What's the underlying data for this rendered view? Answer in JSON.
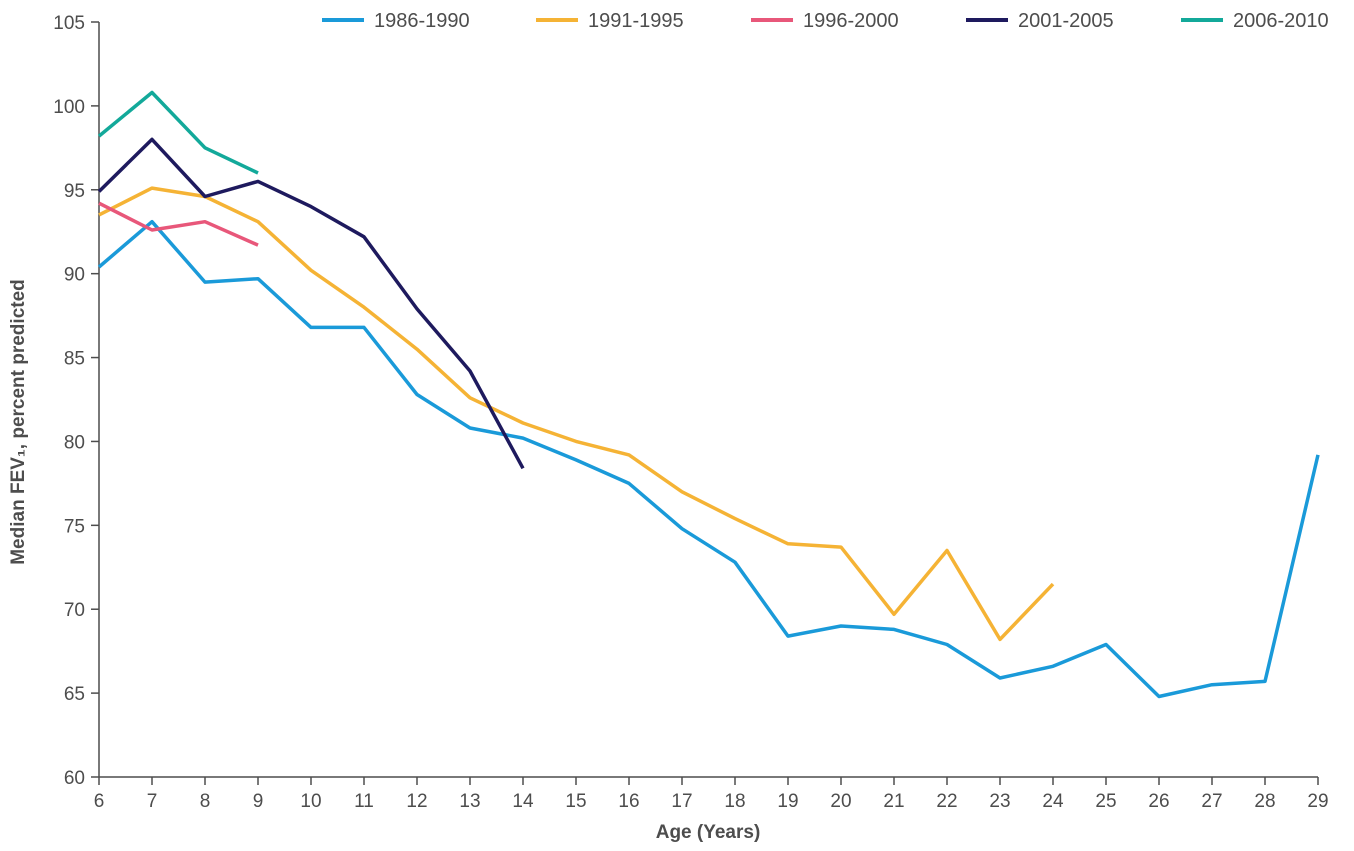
{
  "chart_data": {
    "type": "line",
    "title": "",
    "xlabel": "Age (Years)",
    "ylabel": "Median FEV₁, percent predicted",
    "xlim": [
      6,
      29
    ],
    "ylim": [
      60,
      105
    ],
    "x_ticks": [
      6,
      7,
      8,
      9,
      10,
      11,
      12,
      13,
      14,
      15,
      16,
      17,
      18,
      19,
      20,
      21,
      22,
      23,
      24,
      25,
      26,
      27,
      28,
      29
    ],
    "y_ticks": [
      60,
      65,
      70,
      75,
      80,
      85,
      90,
      95,
      100,
      105
    ],
    "grid": false,
    "legend": "top",
    "series": [
      {
        "name": "1986-1990",
        "color": "#1a9ad9",
        "x": [
          6,
          7,
          8,
          9,
          10,
          11,
          12,
          13,
          14,
          15,
          16,
          17,
          18,
          19,
          20,
          21,
          22,
          23,
          24,
          25,
          26,
          27,
          28,
          29
        ],
        "y": [
          90.4,
          93.1,
          89.5,
          89.7,
          86.8,
          86.8,
          82.8,
          80.8,
          80.2,
          78.9,
          77.5,
          74.8,
          72.8,
          68.4,
          69.0,
          68.8,
          67.9,
          65.9,
          66.6,
          67.9,
          64.8,
          65.5,
          65.7,
          79.2
        ]
      },
      {
        "name": "1991-1995",
        "color": "#f5b335",
        "x": [
          6,
          7,
          8,
          9,
          10,
          11,
          12,
          13,
          14,
          15,
          16,
          17,
          18,
          19,
          20,
          21,
          22,
          23,
          24
        ],
        "y": [
          93.5,
          95.1,
          94.6,
          93.1,
          90.2,
          88.0,
          85.5,
          82.6,
          81.1,
          80.0,
          79.2,
          77.0,
          75.4,
          73.9,
          73.7,
          69.7,
          73.5,
          68.2,
          71.5
        ]
      },
      {
        "name": "1996-2000",
        "color": "#e8577a",
        "x": [
          6,
          7,
          8,
          9
        ],
        "y": [
          94.2,
          92.6,
          93.1,
          91.7
        ]
      },
      {
        "name": "2001-2005",
        "color": "#1e1a5e",
        "x": [
          6,
          7,
          8,
          9,
          10,
          11,
          12,
          13,
          14
        ],
        "y": [
          94.9,
          98.0,
          94.6,
          95.5,
          94.0,
          92.2,
          87.9,
          84.2,
          78.4
        ]
      },
      {
        "name": "2006-2010",
        "color": "#13a99a",
        "x": [
          6,
          7,
          8,
          9
        ],
        "y": [
          98.2,
          100.8,
          97.5,
          96.0
        ]
      }
    ]
  }
}
